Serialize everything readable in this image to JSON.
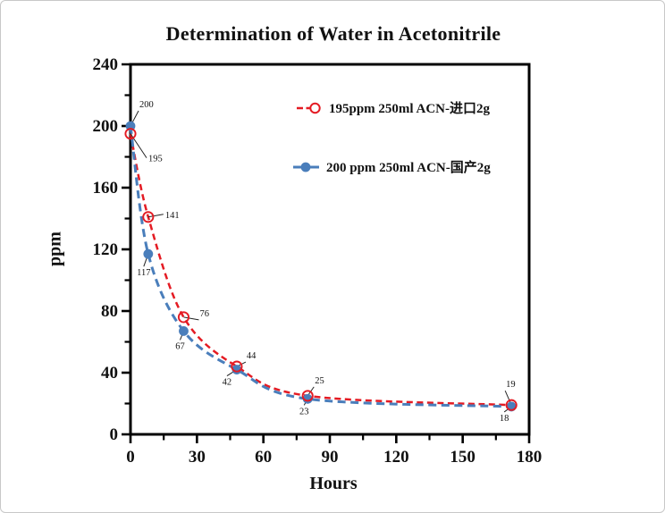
{
  "window": {
    "background": "#ffffff",
    "border_color": "#c8c8c8",
    "axis_color": "#000000",
    "text_color": "#111111"
  },
  "chart_data": {
    "type": "line",
    "title": "Determination of Water in Acetonitrile",
    "xlabel": "Hours",
    "ylabel": "ppm",
    "xlim": [
      0,
      180
    ],
    "ylim": [
      0,
      240
    ],
    "xticks": [
      0,
      30,
      60,
      90,
      120,
      150,
      180
    ],
    "yticks": [
      0,
      40,
      80,
      120,
      160,
      200,
      240
    ],
    "x_minor_step": 15,
    "y_minor_step": 20,
    "grid": false,
    "legend_position": "inside-upper-center",
    "series": [
      {
        "name": "195ppm  250ml ACN-进口2g",
        "color": "#e41b23",
        "marker": "open-circle",
        "line_style": "dashed",
        "x": [
          0,
          8,
          24,
          48,
          80,
          172
        ],
        "values": [
          195,
          141,
          76,
          44,
          25,
          19
        ],
        "point_labels": [
          "195",
          "141",
          "76",
          "44",
          "25",
          "19"
        ],
        "label_offsets": [
          [
            20,
            31,
            "start"
          ],
          [
            19,
            1,
            "start"
          ],
          [
            18,
            -1,
            "start"
          ],
          [
            11,
            -9,
            "start"
          ],
          [
            8,
            -14,
            "start"
          ],
          [
            -6,
            -20,
            "start"
          ]
        ]
      },
      {
        "name": "200 ppm 250ml ACN-国产2g",
        "color": "#4a7ebb",
        "marker": "filled-circle",
        "line_style": "dashed",
        "x": [
          0,
          8,
          24,
          48,
          80,
          172
        ],
        "values": [
          200,
          117,
          67,
          42,
          23,
          18
        ],
        "point_labels": [
          "200",
          "117",
          "67",
          "42",
          "23",
          "18"
        ],
        "label_offsets": [
          [
            10,
            -21,
            "start"
          ],
          [
            -5,
            24,
            "middle"
          ],
          [
            -4,
            20,
            "middle"
          ],
          [
            -11,
            17,
            "middle"
          ],
          [
            -4,
            17,
            "middle"
          ],
          [
            -8,
            16,
            "middle"
          ]
        ]
      }
    ]
  }
}
